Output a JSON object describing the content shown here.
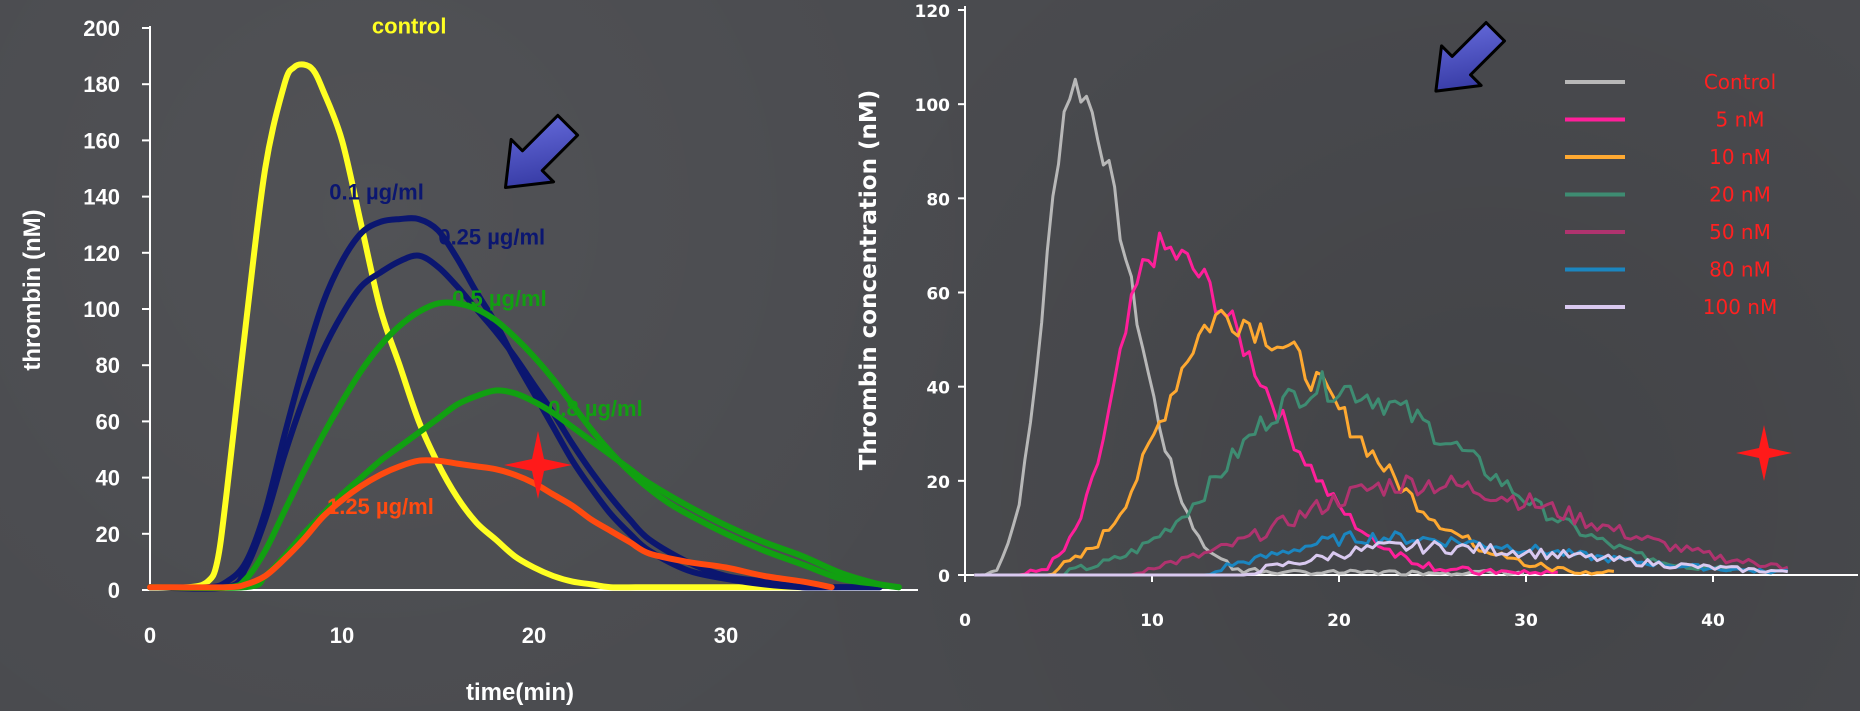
{
  "colors": {
    "background": "#4a4b4f",
    "axis": "#ffffff",
    "arrow": "#3b3fae",
    "star": "#ff1a1a",
    "legend_text": "#ff2020"
  },
  "chart_data": [
    {
      "type": "line",
      "xlabel": "time(min)",
      "ylabel": "thrombin   (nM)",
      "xlim": [
        0,
        40
      ],
      "ylim": [
        0,
        200
      ],
      "xticks": [
        "0",
        "10",
        "20",
        "30"
      ],
      "yticks": [
        "0",
        "20",
        "40",
        "60",
        "80",
        "100",
        "120",
        "140",
        "160",
        "180",
        "200"
      ],
      "grid": false,
      "series": [
        {
          "name": "control",
          "color": "#ffff22",
          "x": [
            0,
            2,
            3,
            3.5,
            4,
            5,
            6,
            7,
            7.5,
            8,
            8.5,
            9,
            10,
            11,
            12,
            13,
            14,
            15,
            16,
            17,
            18,
            19,
            20,
            21,
            22,
            23,
            24,
            26,
            28,
            30,
            32,
            34
          ],
          "y": [
            1,
            1,
            3,
            10,
            35,
            95,
            150,
            180,
            186,
            187,
            185,
            178,
            160,
            130,
            100,
            80,
            60,
            45,
            33,
            24,
            18,
            12,
            8,
            5,
            3,
            2,
            1,
            1,
            1,
            1,
            1,
            1
          ]
        },
        {
          "name": "0.1 µg/ml",
          "color": "#0b1670",
          "x": [
            0,
            3,
            4,
            5,
            6,
            7,
            8,
            9,
            10,
            11,
            12,
            13,
            14,
            15,
            16,
            17,
            18,
            19,
            20,
            21,
            22,
            23,
            24,
            25,
            26,
            28,
            30,
            32,
            34,
            36,
            38
          ],
          "y": [
            1,
            1,
            3,
            10,
            28,
            55,
            80,
            102,
            117,
            127,
            131,
            132,
            132,
            128,
            118,
            106,
            95,
            82,
            70,
            58,
            46,
            36,
            27,
            20,
            14,
            7,
            4,
            2,
            1,
            1,
            1
          ]
        },
        {
          "name": "0.25 µg/ml",
          "color": "#0b1670",
          "x": [
            0,
            4,
            5,
            6,
            7,
            8,
            9,
            10,
            11,
            12,
            13,
            14,
            15,
            16,
            17,
            18,
            19,
            20,
            21,
            22,
            23,
            24,
            25,
            26,
            28,
            30,
            32,
            34,
            36,
            38
          ],
          "y": [
            1,
            1,
            8,
            25,
            48,
            68,
            85,
            98,
            108,
            113,
            117,
            119,
            115,
            108,
            100,
            92,
            83,
            73,
            63,
            52,
            42,
            33,
            25,
            18,
            10,
            5,
            3,
            1,
            1,
            1
          ]
        },
        {
          "name": "0.5 µg/ml",
          "color": "#11a011",
          "x": [
            0,
            4,
            5,
            6,
            7,
            8,
            9,
            10,
            11,
            12,
            13,
            14,
            15,
            16,
            17,
            18,
            19,
            20,
            21,
            22,
            23,
            24,
            25,
            26,
            27,
            28,
            30,
            32,
            34,
            36,
            38,
            39
          ],
          "y": [
            1,
            1,
            4,
            14,
            28,
            42,
            55,
            67,
            78,
            87,
            94,
            99,
            102,
            102,
            100,
            96,
            90,
            83,
            75,
            66,
            57,
            49,
            42,
            36,
            31,
            27,
            20,
            14,
            9,
            4,
            2,
            1
          ]
        },
        {
          "name": "0.8 µg/ml",
          "color": "#11a011",
          "x": [
            0,
            5,
            6,
            7,
            8,
            9,
            10,
            11,
            12,
            13,
            14,
            15,
            16,
            17,
            18,
            19,
            20,
            21,
            22,
            23,
            24,
            25,
            26,
            28,
            30,
            32,
            34,
            36,
            38,
            39
          ],
          "y": [
            1,
            1,
            5,
            12,
            20,
            27,
            34,
            40,
            46,
            51,
            56,
            61,
            66,
            69,
            71,
            70,
            67,
            63,
            58,
            53,
            48,
            43,
            38,
            30,
            23,
            17,
            12,
            6,
            2,
            1
          ]
        },
        {
          "name": "1.25 µg/ml",
          "color": "#ff4a10",
          "x": [
            0,
            4,
            5,
            6,
            7,
            8,
            9,
            10,
            11,
            12,
            13,
            14,
            15,
            16,
            17,
            18,
            19,
            20,
            21,
            22,
            23,
            24,
            25,
            26,
            28,
            30,
            32,
            34,
            35.5
          ],
          "y": [
            1,
            1,
            2,
            5,
            11,
            18,
            26,
            32,
            37,
            41,
            44,
            46,
            46,
            45,
            44,
            43,
            41,
            38,
            34,
            30,
            25,
            21,
            17,
            13,
            10,
            8,
            5,
            3,
            1
          ]
        }
      ],
      "annotations": [
        {
          "text": "control",
          "color": "#ffff22",
          "x": 13.5,
          "y": 198,
          "size": 31
        },
        {
          "text": "0.1 µg/ml",
          "color": "#0b1670",
          "x": 11.8,
          "y": 139
        },
        {
          "text": "0.25 µg/ml",
          "color": "#0b1670",
          "x": 17.8,
          "y": 123
        },
        {
          "text": "0.5 µg/ml",
          "color": "#11a011",
          "x": 18.2,
          "y": 101
        },
        {
          "text": "0.8 µg/ml",
          "color": "#11a011",
          "x": 23.2,
          "y": 62
        },
        {
          "text": "1.25 µg/ml",
          "color": "#ff4a10",
          "x": 12,
          "y": 27
        }
      ]
    },
    {
      "type": "line",
      "xlabel": "",
      "ylabel": "Thrombin concentration (nM)",
      "xlim": [
        0,
        50
      ],
      "ylim": [
        0,
        120
      ],
      "xticks": [
        "0",
        "10",
        "20",
        "30",
        "40"
      ],
      "yticks": [
        "0",
        "20",
        "40",
        "60",
        "80",
        "100",
        "120"
      ],
      "grid": false,
      "legend": "top-right",
      "series": [
        {
          "name": "Control",
          "color": "#b8b8b8",
          "peak_x": 5.8,
          "peak_y": 104,
          "start": 1,
          "sigma_left": 1.5,
          "sigma_right": 3.0,
          "noise": 3,
          "end": 30,
          "tail": 1
        },
        {
          "name": "5 nM",
          "color": "#ff1f9a",
          "peak_x": 10.3,
          "peak_y": 69,
          "start": 3,
          "sigma_left": 2.2,
          "sigma_right": 5.5,
          "noise": 3,
          "end": 32,
          "tail": 1
        },
        {
          "name": "10 nM",
          "color": "#ffa931",
          "peak_x": 13.8,
          "peak_y": 55,
          "start": 4,
          "sigma_left": 3.3,
          "sigma_right": 6.5,
          "noise": 3,
          "end": 35,
          "tail": 1
        },
        {
          "name": "20 nM",
          "color": "#3e8c72",
          "peak_x": 19.2,
          "peak_y": 40,
          "start": 5,
          "sigma_left": 5.0,
          "sigma_right": 8.0,
          "noise": 2.5,
          "end": 41,
          "tail": 1
        },
        {
          "name": "50 nM",
          "color": "#b0336f",
          "peak_x": 24,
          "peak_y": 19.5,
          "start": 9,
          "sigma_left": 6.5,
          "sigma_right": 9.0,
          "noise": 2,
          "end": 44,
          "tail": 1
        },
        {
          "name": "80 nM",
          "color": "#1b86c0",
          "peak_x": 21.5,
          "peak_y": 8,
          "start": 13,
          "sigma_left": 4.5,
          "sigma_right": 10.0,
          "noise": 1.2,
          "end": 44,
          "tail": 1
        },
        {
          "name": "100 nM",
          "color": "#d9c9f0",
          "peak_x": 23.5,
          "peak_y": 6,
          "start": 15,
          "sigma_left": 4.5,
          "sigma_right": 10.0,
          "noise": 1.2,
          "end": 44,
          "tail": 1
        }
      ]
    }
  ]
}
